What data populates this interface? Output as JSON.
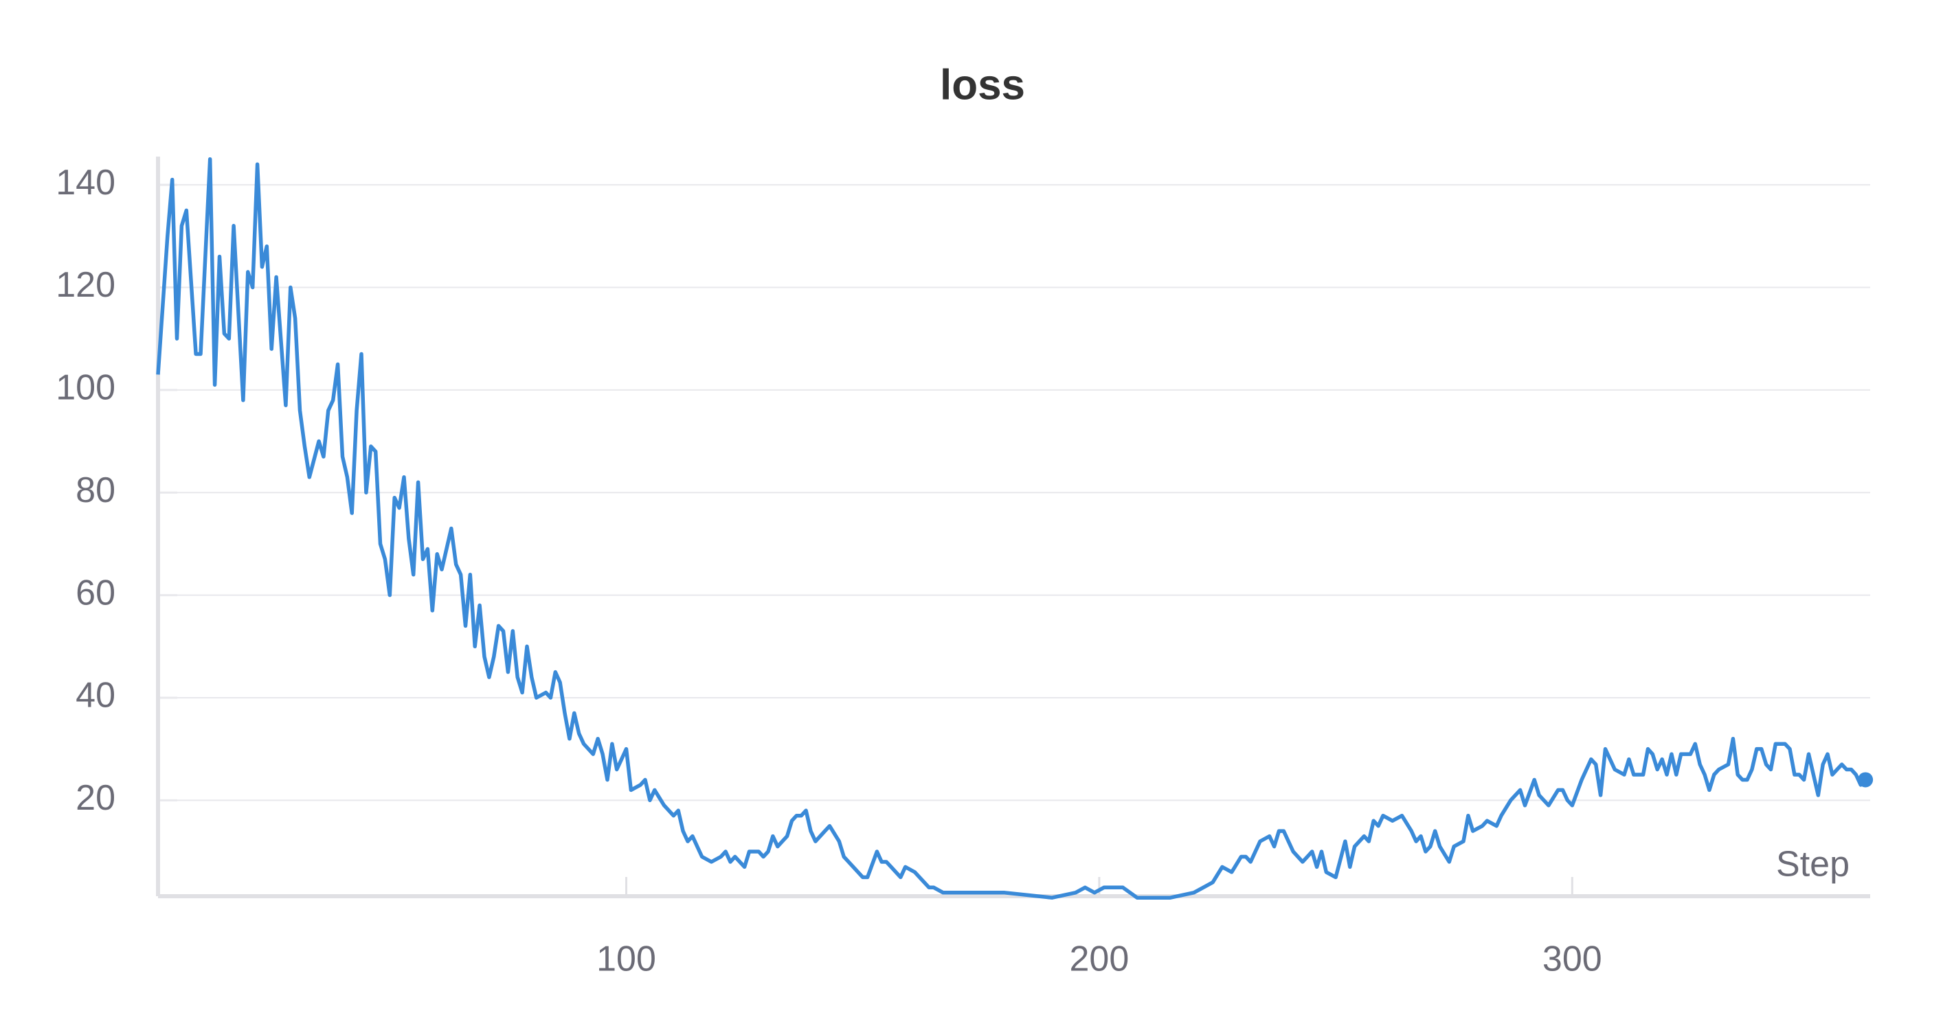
{
  "chart_data": {
    "type": "line",
    "title": "loss",
    "x_label": "Step",
    "x": [
      1,
      3,
      4,
      5,
      6,
      7,
      9,
      10,
      12,
      13,
      14,
      15,
      16,
      17,
      19,
      20,
      21,
      22,
      23,
      24,
      25,
      26,
      28,
      29,
      30,
      31,
      32,
      33,
      35,
      36,
      37,
      38,
      39,
      40,
      41,
      42,
      43,
      44,
      45,
      46,
      47,
      48,
      49,
      50,
      51,
      52,
      53,
      54,
      55,
      56,
      57,
      58,
      59,
      60,
      61,
      62,
      63,
      64,
      65,
      66,
      67,
      68,
      69,
      70,
      71,
      72,
      73,
      74,
      75,
      76,
      77,
      78,
      79,
      80,
      81,
      83,
      84,
      85,
      86,
      87,
      88,
      89,
      90,
      91,
      93,
      94,
      95,
      96,
      97,
      98,
      99,
      100,
      101,
      103,
      104,
      105,
      106,
      108,
      110,
      111,
      112,
      113,
      114,
      115,
      116,
      118,
      120,
      121,
      122,
      123,
      125,
      126,
      128,
      129,
      130,
      131,
      132,
      134,
      135,
      136,
      137,
      138,
      139,
      140,
      142,
      143,
      145,
      146,
      148,
      150,
      151,
      153,
      154,
      155,
      156,
      158,
      159,
      161,
      162,
      164,
      165,
      167,
      170,
      175,
      180,
      185,
      190,
      195,
      197,
      199,
      201,
      205,
      208,
      215,
      220,
      222,
      224,
      226,
      228,
      230,
      231,
      232,
      234,
      236,
      237,
      238,
      239,
      240,
      241,
      243,
      245,
      246,
      247,
      248,
      250,
      252,
      253,
      254,
      256,
      257,
      258,
      259,
      260,
      262,
      264,
      266,
      267,
      268,
      269,
      270,
      271,
      272,
      274,
      275,
      277,
      278,
      279,
      281,
      282,
      284,
      285,
      287,
      289,
      290,
      292,
      293,
      295,
      297,
      298,
      299,
      300,
      302,
      304,
      305,
      306,
      307,
      309,
      311,
      312,
      313,
      315,
      316,
      317,
      318,
      319,
      320,
      321,
      322,
      323,
      325,
      326,
      327,
      328,
      329,
      330,
      331,
      333,
      334,
      335,
      336,
      337,
      338,
      339,
      340,
      341,
      342,
      343,
      344,
      345,
      346,
      347,
      348,
      349,
      350,
      351,
      352,
      353,
      354,
      355,
      356,
      357,
      358,
      359,
      360,
      361,
      362
    ],
    "values": [
      103,
      130,
      141,
      110,
      132,
      135,
      107,
      107,
      145,
      101,
      126,
      111,
      110,
      132,
      98,
      123,
      120,
      144,
      124,
      128,
      108,
      122,
      97,
      120,
      114,
      96,
      89,
      83,
      90,
      87,
      96,
      98,
      105,
      87,
      83,
      76,
      96,
      107,
      80,
      89,
      88,
      70,
      67,
      60,
      79,
      77,
      83,
      71,
      64,
      82,
      67,
      69,
      57,
      68,
      65,
      69,
      73,
      66,
      64,
      54,
      64,
      50,
      58,
      48,
      44,
      48,
      54,
      53,
      45,
      53,
      44,
      41,
      50,
      44,
      40,
      41,
      40,
      45,
      43,
      37,
      32,
      37,
      33,
      31,
      29,
      32,
      29,
      24,
      31,
      26,
      28,
      30,
      22,
      23,
      24,
      20,
      22,
      19,
      17,
      18,
      14,
      12,
      13,
      11,
      9,
      8,
      9,
      10,
      8,
      9,
      7,
      10,
      10,
      9,
      10,
      13,
      11,
      13,
      16,
      17,
      17,
      18,
      14,
      12,
      14,
      15,
      12,
      9,
      7,
      5,
      5,
      10,
      8,
      8,
      7,
      5,
      7,
      6,
      5,
      3,
      3,
      2,
      2,
      2,
      2,
      1.5,
      1,
      2,
      3,
      2,
      3,
      3,
      1,
      1,
      2,
      3,
      4,
      7,
      6,
      9,
      9,
      8,
      12,
      13,
      11,
      14,
      14,
      12,
      10,
      8,
      10,
      7,
      10,
      6,
      5,
      12,
      7,
      11,
      13,
      12,
      16,
      15,
      17,
      16,
      17,
      14,
      12,
      13,
      10,
      11,
      14,
      11,
      8,
      11,
      12,
      17,
      14,
      15,
      16,
      15,
      17,
      20,
      22,
      19,
      24,
      21,
      19,
      22,
      22,
      20,
      19,
      24,
      28,
      27,
      21,
      30,
      26,
      25,
      28,
      25,
      25,
      30,
      29,
      26,
      28,
      25,
      29,
      25,
      29,
      29,
      31,
      27,
      25,
      22,
      25,
      26,
      27,
      32,
      25,
      24,
      24,
      26,
      30,
      30,
      27,
      26,
      31,
      31,
      31,
      30,
      25,
      25,
      24,
      29,
      25,
      21,
      27,
      29,
      25,
      26,
      27,
      26,
      26,
      25,
      23,
      24
    ],
    "color": "#3a8ad8",
    "end_marker": true,
    "xlim": [
      1,
      363
    ],
    "ylim": [
      1.3,
      145.5
    ],
    "xticks": [
      100,
      200,
      300
    ],
    "yticks": [
      20,
      40,
      60,
      80,
      100,
      120,
      140
    ],
    "grid": true
  }
}
